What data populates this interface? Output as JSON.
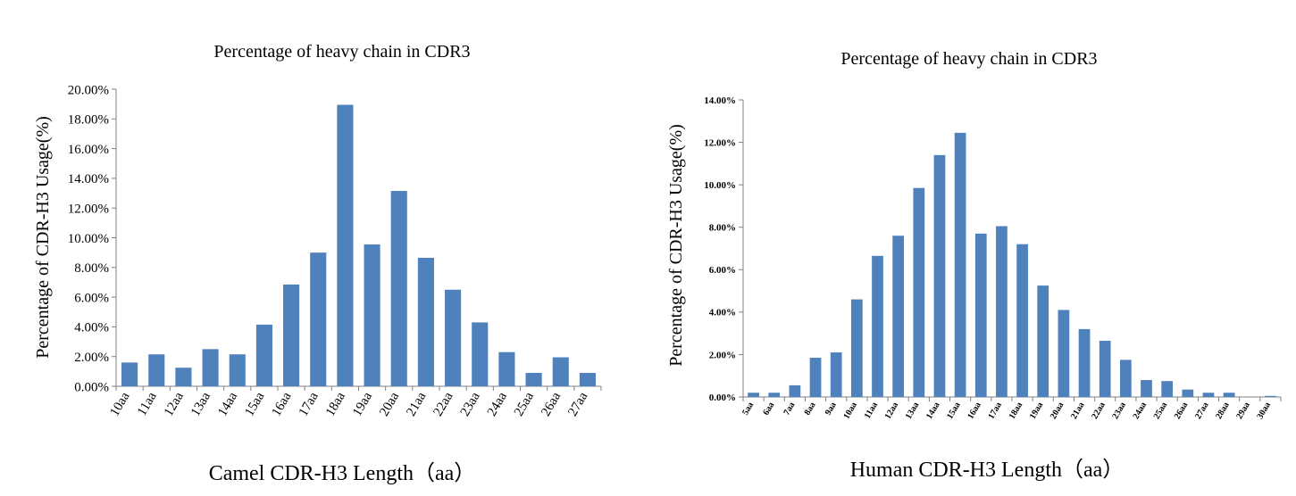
{
  "chart_data": [
    {
      "type": "bar",
      "title": "Percentage of heavy chain in CDR3",
      "xlabel": "Camel CDR-H3 Length（aa）",
      "ylabel": "Percentage of  CDR-H3 Usage(%)",
      "categories": [
        "10aa",
        "11aa",
        "12aa",
        "13aa",
        "14aa",
        "15aa",
        "16aa",
        "17aa",
        "18aa",
        "19aa",
        "20aa",
        "21aa",
        "22aa",
        "23aa",
        "24aa",
        "25aa",
        "26aa",
        "27aa"
      ],
      "values": [
        1.6,
        2.15,
        1.25,
        2.5,
        2.15,
        4.15,
        6.85,
        9.0,
        18.95,
        9.55,
        13.15,
        8.65,
        6.5,
        4.3,
        2.3,
        0.9,
        1.95,
        0.9
      ],
      "y_ticks": [
        "0.00%",
        "2.00%",
        "4.00%",
        "6.00%",
        "8.00%",
        "10.00%",
        "12.00%",
        "14.00%",
        "16.00%",
        "18.00%",
        "20.00%"
      ],
      "ylim": [
        0,
        20
      ],
      "bar_color": "#4f81bd",
      "grid": false,
      "legend": "none"
    },
    {
      "type": "bar",
      "title": "Percentage of heavy chain in CDR3",
      "xlabel": "Human CDR-H3 Length（aa）",
      "ylabel": "Percentage of  CDR-H3 Usage(%)",
      "categories": [
        "5aa",
        "6aa",
        "7aa",
        "8aa",
        "9aa",
        "10aa",
        "11aa",
        "12aa",
        "13aa",
        "14aa",
        "15aa",
        "16aa",
        "17aa",
        "18aa",
        "19aa",
        "20aa",
        "21aa",
        "22aa",
        "23aa",
        "24aa",
        "25aa",
        "26aa",
        "27aa",
        "28aa",
        "29aa",
        "30aa"
      ],
      "values": [
        0.2,
        0.2,
        0.55,
        1.85,
        2.1,
        4.6,
        6.65,
        7.6,
        9.85,
        11.4,
        12.45,
        7.7,
        8.05,
        7.2,
        5.25,
        4.1,
        3.2,
        2.65,
        1.75,
        0.8,
        0.75,
        0.35,
        0.2,
        0.2,
        0.0,
        0.05
      ],
      "y_ticks": [
        "0.00%",
        "2.00%",
        "4.00%",
        "6.00%",
        "8.00%",
        "10.00%",
        "12.00%",
        "14.00%"
      ],
      "ylim": [
        0,
        14
      ],
      "bar_color": "#4f81bd",
      "grid": false,
      "legend": "none"
    }
  ]
}
